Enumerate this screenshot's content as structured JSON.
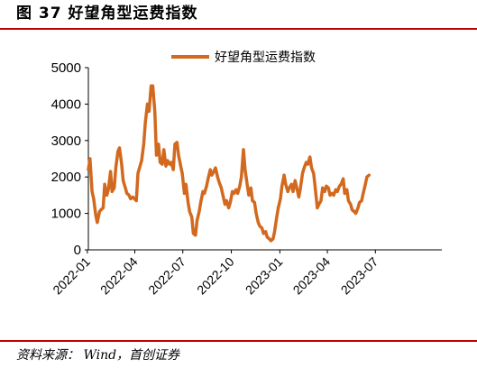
{
  "figure": {
    "title": "图 37 好望角型运费指数",
    "source": "资料来源：  Wind，首创证券"
  },
  "colors": {
    "accent_rule": "#c00000",
    "series_line": "#d2691e"
  },
  "chart_data": {
    "type": "line",
    "title": "",
    "xlabel": "",
    "ylabel": "",
    "ylim": [
      0,
      5000
    ],
    "yticks": [
      0,
      1000,
      2000,
      3000,
      4000,
      5000
    ],
    "xlim": [
      "2022-01-03",
      "2023-11-04"
    ],
    "xticks": [
      "2022-01",
      "2022-04",
      "2022-07",
      "2022-10",
      "2023-01",
      "2023-04",
      "2023-07"
    ],
    "legend_position": "top-center",
    "grid": false,
    "series": [
      {
        "name": "好望角型运费指数",
        "points": [
          [
            "2022-01-03",
            2200
          ],
          [
            "2022-01-06",
            2500
          ],
          [
            "2022-01-10",
            1600
          ],
          [
            "2022-01-13",
            1400
          ],
          [
            "2022-01-17",
            950
          ],
          [
            "2022-01-20",
            750
          ],
          [
            "2022-01-24",
            1050
          ],
          [
            "2022-01-27",
            1100
          ],
          [
            "2022-01-31",
            1150
          ],
          [
            "2022-02-03",
            1800
          ],
          [
            "2022-02-07",
            1500
          ],
          [
            "2022-02-10",
            1650
          ],
          [
            "2022-02-14",
            2150
          ],
          [
            "2022-02-17",
            1600
          ],
          [
            "2022-02-21",
            1700
          ],
          [
            "2022-02-24",
            2250
          ],
          [
            "2022-02-28",
            2700
          ],
          [
            "2022-03-03",
            2800
          ],
          [
            "2022-03-07",
            2350
          ],
          [
            "2022-03-10",
            1900
          ],
          [
            "2022-03-14",
            1700
          ],
          [
            "2022-03-17",
            1550
          ],
          [
            "2022-03-21",
            1500
          ],
          [
            "2022-03-24",
            1400
          ],
          [
            "2022-03-28",
            1450
          ],
          [
            "2022-04-04",
            1350
          ],
          [
            "2022-04-07",
            2100
          ],
          [
            "2022-04-11",
            2300
          ],
          [
            "2022-04-14",
            2450
          ],
          [
            "2022-04-18",
            2900
          ],
          [
            "2022-04-21",
            3500
          ],
          [
            "2022-04-25",
            4000
          ],
          [
            "2022-04-28",
            3800
          ],
          [
            "2022-05-02",
            4500
          ],
          [
            "2022-05-05",
            4500
          ],
          [
            "2022-05-09",
            3800
          ],
          [
            "2022-05-12",
            2600
          ],
          [
            "2022-05-16",
            2900
          ],
          [
            "2022-05-19",
            2400
          ],
          [
            "2022-05-23",
            2350
          ],
          [
            "2022-05-26",
            2750
          ],
          [
            "2022-05-30",
            2300
          ],
          [
            "2022-06-02",
            2450
          ],
          [
            "2022-06-06",
            2350
          ],
          [
            "2022-06-09",
            2400
          ],
          [
            "2022-06-13",
            2200
          ],
          [
            "2022-06-16",
            2900
          ],
          [
            "2022-06-20",
            2950
          ],
          [
            "2022-06-23",
            2600
          ],
          [
            "2022-06-27",
            2300
          ],
          [
            "2022-06-30",
            2100
          ],
          [
            "2022-07-04",
            1550
          ],
          [
            "2022-07-07",
            1800
          ],
          [
            "2022-07-11",
            1300
          ],
          [
            "2022-07-14",
            1050
          ],
          [
            "2022-07-18",
            900
          ],
          [
            "2022-07-21",
            450
          ],
          [
            "2022-07-25",
            400
          ],
          [
            "2022-07-28",
            800
          ],
          [
            "2022-08-01",
            1050
          ],
          [
            "2022-08-04",
            1300
          ],
          [
            "2022-08-08",
            1600
          ],
          [
            "2022-08-11",
            1550
          ],
          [
            "2022-08-15",
            1750
          ],
          [
            "2022-08-18",
            1950
          ],
          [
            "2022-08-22",
            2200
          ],
          [
            "2022-08-25",
            2050
          ],
          [
            "2022-08-29",
            2150
          ],
          [
            "2022-09-01",
            2250
          ],
          [
            "2022-09-05",
            2000
          ],
          [
            "2022-09-08",
            1850
          ],
          [
            "2022-09-12",
            1700
          ],
          [
            "2022-09-15",
            1500
          ],
          [
            "2022-09-19",
            1250
          ],
          [
            "2022-09-22",
            1350
          ],
          [
            "2022-09-26",
            1150
          ],
          [
            "2022-09-29",
            1300
          ],
          [
            "2022-10-03",
            1600
          ],
          [
            "2022-10-06",
            1550
          ],
          [
            "2022-10-10",
            1650
          ],
          [
            "2022-10-13",
            1550
          ],
          [
            "2022-10-17",
            1750
          ],
          [
            "2022-10-20",
            2000
          ],
          [
            "2022-10-24",
            2750
          ],
          [
            "2022-10-27",
            2200
          ],
          [
            "2022-10-31",
            1800
          ],
          [
            "2022-11-03",
            1500
          ],
          [
            "2022-11-07",
            1700
          ],
          [
            "2022-11-10",
            1350
          ],
          [
            "2022-11-14",
            1300
          ],
          [
            "2022-11-17",
            1000
          ],
          [
            "2022-11-21",
            750
          ],
          [
            "2022-11-24",
            650
          ],
          [
            "2022-11-28",
            600
          ],
          [
            "2022-12-01",
            450
          ],
          [
            "2022-12-05",
            500
          ],
          [
            "2022-12-08",
            350
          ],
          [
            "2022-12-12",
            300
          ],
          [
            "2022-12-15",
            250
          ],
          [
            "2022-12-19",
            300
          ],
          [
            "2022-12-22",
            500
          ],
          [
            "2022-12-26",
            900
          ],
          [
            "2022-12-29",
            1150
          ],
          [
            "2023-01-02",
            1400
          ],
          [
            "2023-01-05",
            1750
          ],
          [
            "2023-01-09",
            2050
          ],
          [
            "2023-01-12",
            1800
          ],
          [
            "2023-01-16",
            1600
          ],
          [
            "2023-01-19",
            1700
          ],
          [
            "2023-01-23",
            1800
          ],
          [
            "2023-01-26",
            1600
          ],
          [
            "2023-01-30",
            1900
          ],
          [
            "2023-02-02",
            1700
          ],
          [
            "2023-02-06",
            1450
          ],
          [
            "2023-02-09",
            1700
          ],
          [
            "2023-02-13",
            2100
          ],
          [
            "2023-02-16",
            2250
          ],
          [
            "2023-02-20",
            2400
          ],
          [
            "2023-02-23",
            2350
          ],
          [
            "2023-02-27",
            2550
          ],
          [
            "2023-03-02",
            2250
          ],
          [
            "2023-03-06",
            2100
          ],
          [
            "2023-03-09",
            1700
          ],
          [
            "2023-03-13",
            1150
          ],
          [
            "2023-03-16",
            1250
          ],
          [
            "2023-03-20",
            1350
          ],
          [
            "2023-03-23",
            1700
          ],
          [
            "2023-03-27",
            1600
          ],
          [
            "2023-03-30",
            1750
          ],
          [
            "2023-04-03",
            1700
          ],
          [
            "2023-04-06",
            1500
          ],
          [
            "2023-04-10",
            1550
          ],
          [
            "2023-04-13",
            1500
          ],
          [
            "2023-04-17",
            1650
          ],
          [
            "2023-04-20",
            1600
          ],
          [
            "2023-04-24",
            1750
          ],
          [
            "2023-04-27",
            1800
          ],
          [
            "2023-05-01",
            1950
          ],
          [
            "2023-05-04",
            1550
          ],
          [
            "2023-05-08",
            1650
          ],
          [
            "2023-05-11",
            1350
          ],
          [
            "2023-05-15",
            1250
          ],
          [
            "2023-05-18",
            1100
          ],
          [
            "2023-05-22",
            1050
          ],
          [
            "2023-05-25",
            1000
          ],
          [
            "2023-05-29",
            1150
          ],
          [
            "2023-06-01",
            1300
          ],
          [
            "2023-06-05",
            1350
          ],
          [
            "2023-06-08",
            1550
          ],
          [
            "2023-06-12",
            1800
          ],
          [
            "2023-06-15",
            2000
          ],
          [
            "2023-06-19",
            2050
          ]
        ]
      }
    ]
  }
}
